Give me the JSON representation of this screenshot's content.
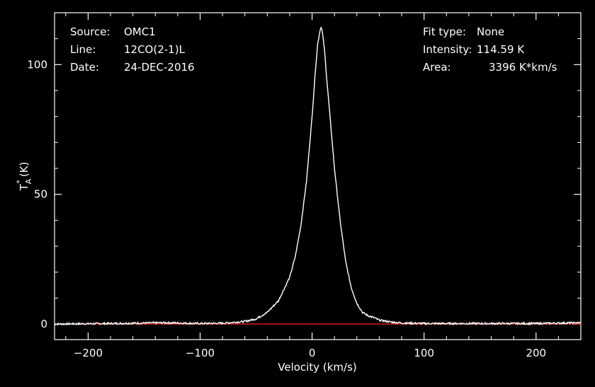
{
  "header": {
    "source_label": "Source:",
    "source_value": "OMC1",
    "line_label": "Line:",
    "line_value": "12CO(2-1)L",
    "date_label": "Date:",
    "date_value": "24-DEC-2016",
    "fit_label": "Fit type:",
    "fit_value": "None",
    "intensity_label": "Intensity:",
    "intensity_value": "114.59 K",
    "area_label": "Area:",
    "area_value": "3396 K*km/s"
  },
  "chart_data": {
    "type": "line",
    "xlabel": "Velocity (km/s)",
    "ylabel": "T*A (K)",
    "xlim": [
      -230,
      240
    ],
    "ylim": [
      -6,
      120
    ],
    "x_ticks": [
      -200,
      -100,
      0,
      100,
      200
    ],
    "y_ticks": [
      0,
      50,
      100
    ],
    "baseline": 0,
    "colors": {
      "spectrum": "#ffffff",
      "baseline": "#ff2020",
      "axes": "#ffffff",
      "background": "#000000"
    },
    "series": [
      {
        "x": [
          -230,
          -180,
          -130,
          -100,
          -80,
          -60,
          -50,
          -40,
          -30,
          -20,
          -15,
          -10,
          -5,
          0,
          3,
          5,
          7,
          8,
          9,
          11,
          13,
          16,
          20,
          25,
          30,
          35,
          40,
          45,
          50,
          55,
          60,
          70,
          80,
          100,
          150,
          200,
          240
        ],
        "y": [
          0,
          0.2,
          0.5,
          0.2,
          0.3,
          1.0,
          2.0,
          4.5,
          9.0,
          18,
          26,
          38,
          55,
          80,
          98,
          108,
          113,
          114.6,
          113,
          106,
          95,
          80,
          60,
          40,
          24,
          14,
          8,
          4.5,
          3.2,
          2.5,
          1.5,
          0.8,
          0.4,
          0.2,
          0.2,
          0.2,
          0.5
        ]
      }
    ]
  }
}
